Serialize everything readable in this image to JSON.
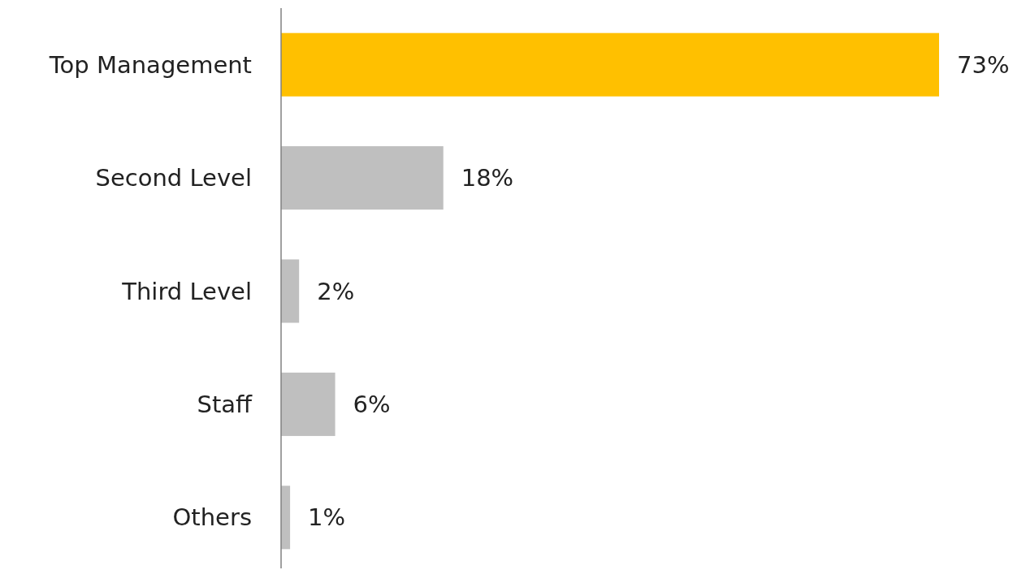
{
  "chart_data": {
    "type": "bar",
    "orientation": "horizontal",
    "categories": [
      "Top Management",
      "Second Level",
      "Third Level",
      "Staff",
      "Others"
    ],
    "values": [
      73,
      18,
      2,
      6,
      1
    ],
    "colors": [
      "#ffc000",
      "#bfbfbf",
      "#bfbfbf",
      "#bfbfbf",
      "#bfbfbf"
    ],
    "value_labels": [
      "73%",
      "18%",
      "2%",
      "6%",
      "1%"
    ]
  }
}
